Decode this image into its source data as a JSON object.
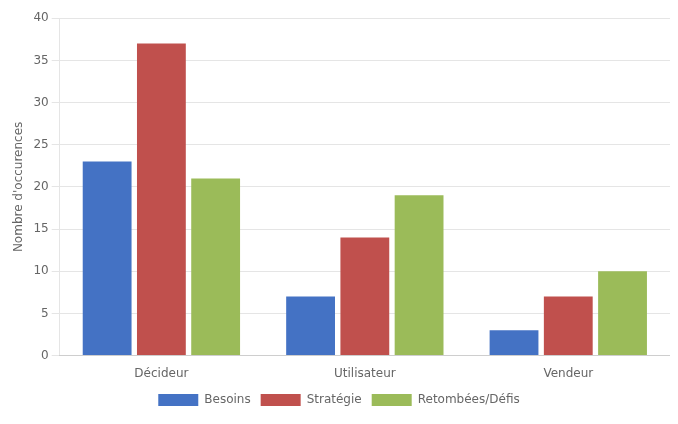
{
  "chart_data": {
    "type": "bar",
    "ylabel": "Nombre d'occurences",
    "categories": [
      "Décideur",
      "Utilisateur",
      "Vendeur"
    ],
    "series": [
      {
        "name": "Besoins",
        "color": "#4472C4",
        "values": [
          23,
          7,
          3
        ]
      },
      {
        "name": "Stratégie",
        "color": "#C0504D",
        "values": [
          37,
          14,
          7
        ]
      },
      {
        "name": "Retombées/Défis",
        "color": "#9BBB59",
        "values": [
          21,
          19,
          10
        ]
      }
    ],
    "ylim": [
      0,
      40
    ],
    "yticks": [
      0,
      5,
      10,
      15,
      20,
      25,
      30,
      35,
      40
    ],
    "grid": true,
    "legend": "bottom"
  }
}
